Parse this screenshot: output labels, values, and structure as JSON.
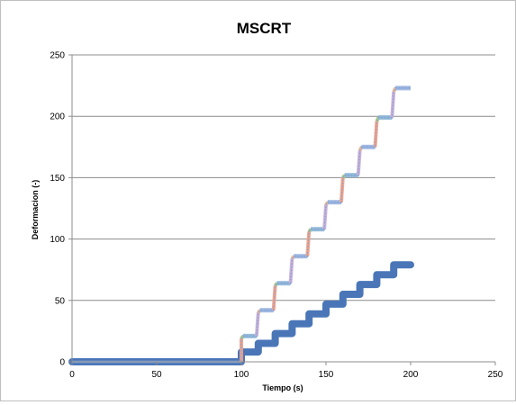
{
  "chart_data": {
    "type": "line",
    "title": "MSCRT",
    "xlabel": "Tiempo (s)",
    "ylabel": "Deformacion (-)",
    "xlim": [
      0,
      250
    ],
    "ylim": [
      0,
      250
    ],
    "xticks": [
      0,
      50,
      100,
      150,
      200,
      250
    ],
    "yticks": [
      0,
      50,
      100,
      150,
      200,
      250
    ],
    "grid": "horizontal",
    "legend": "none",
    "series": [
      {
        "color": "#4a76b8",
        "style": "thick-step",
        "x": [
          0,
          100,
          100,
          110,
          110,
          120,
          120,
          130,
          130,
          140,
          140,
          150,
          150,
          160,
          160,
          170,
          170,
          180,
          180,
          190,
          190,
          200
        ],
        "y": [
          0,
          0,
          8,
          8,
          15,
          15,
          23,
          23,
          31,
          31,
          39,
          39,
          47,
          47,
          55,
          55,
          63,
          63,
          71,
          71,
          79,
          79
        ]
      },
      {
        "color": "#8ca9d9",
        "style": "stair-multicolor",
        "x": [
          0,
          100,
          100,
          101,
          109,
          110,
          111,
          119,
          120,
          121,
          129,
          130,
          131,
          139,
          140,
          141,
          149,
          150,
          151,
          159,
          160,
          161,
          169,
          170,
          171,
          179,
          180,
          181,
          189,
          190,
          191,
          200
        ],
        "y": [
          0,
          0,
          19,
          21,
          21,
          40,
          42,
          42,
          62,
          64,
          64,
          84,
          86,
          86,
          106,
          108,
          108,
          128,
          130,
          130,
          150,
          152,
          152,
          172,
          175,
          175,
          196,
          199,
          199,
          220,
          223,
          223
        ],
        "segment_colors": [
          "#9bb5e0",
          "#f0a28a",
          "#a8c880",
          "#8fb8d8",
          "#c8b0d8",
          "#f0b890"
        ]
      }
    ]
  }
}
